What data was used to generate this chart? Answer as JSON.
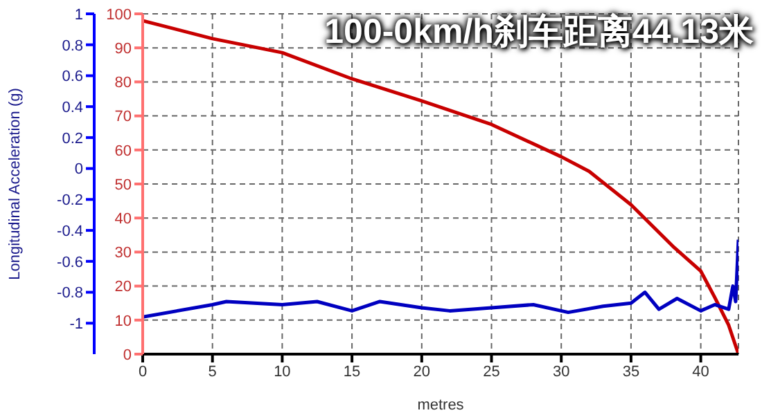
{
  "chart_data": {
    "type": "line",
    "title": "100-0km/h刹车距离44.13米",
    "xlabel": "metres",
    "y2label": "Longitudinal Acceleration (g)",
    "xlim": [
      0,
      42.7
    ],
    "xticks": [
      0,
      5,
      10,
      15,
      20,
      25,
      30,
      35,
      40
    ],
    "ylim": [
      0,
      100
    ],
    "yticks": [
      0,
      10,
      20,
      30,
      40,
      50,
      60,
      70,
      80,
      90,
      100
    ],
    "y2lim": [
      -1.2,
      1
    ],
    "y2ticks": [
      -1,
      -0.8,
      -0.6,
      -0.4,
      -0.2,
      0,
      0.2,
      0.4,
      0.6,
      0.8,
      1
    ],
    "grid": true,
    "line_style": "solid",
    "marker": "none",
    "series": [
      {
        "color": "#c80000",
        "x": [
          0,
          5,
          10,
          15,
          20,
          25,
          30,
          32,
          35,
          38,
          40,
          41,
          42,
          42.7
        ],
        "values": [
          98,
          92.7,
          88.6,
          80.9,
          74.4,
          67.5,
          58,
          53.7,
          43.9,
          31.7,
          24.4,
          16.7,
          8.5,
          0
        ]
      },
      {
        "color": "#0000c0",
        "axis": "y2",
        "x": [
          0,
          5,
          6,
          10,
          12.5,
          15,
          17,
          20,
          22,
          25,
          28,
          30.5,
          33,
          35,
          36,
          37,
          38.3,
          40,
          41,
          42,
          42.3,
          42.5,
          42.7
        ],
        "values": [
          -0.96,
          -0.88,
          -0.86,
          -0.88,
          -0.86,
          -0.92,
          -0.86,
          -0.9,
          -0.92,
          -0.9,
          -0.88,
          -0.93,
          -0.89,
          -0.87,
          -0.8,
          -0.91,
          -0.84,
          -0.92,
          -0.88,
          -0.91,
          -0.76,
          -0.86,
          -0.46
        ]
      }
    ]
  }
}
